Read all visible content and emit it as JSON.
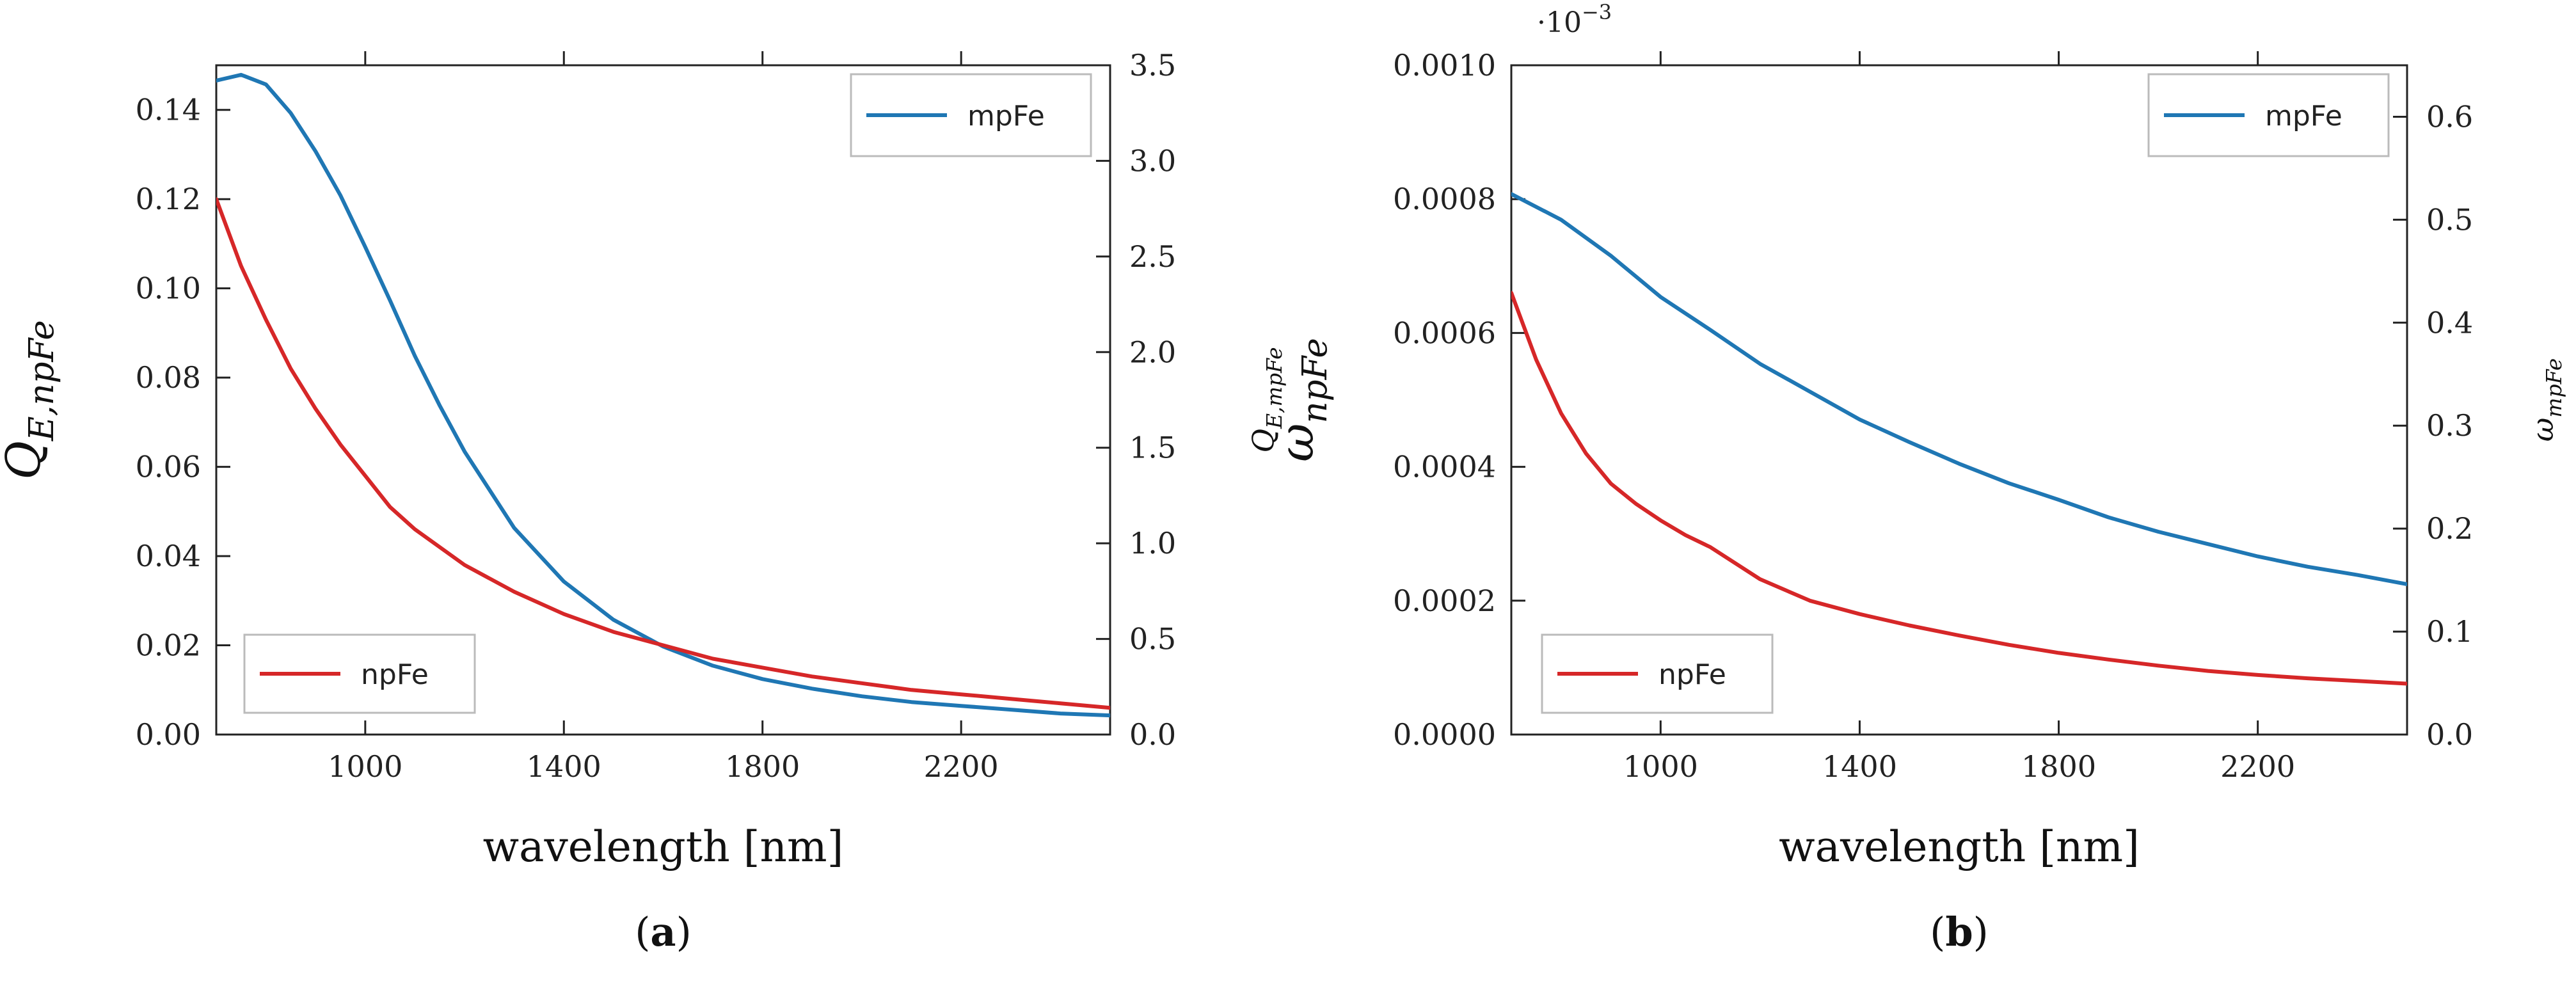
{
  "chart_data": [
    {
      "id": "a",
      "type": "line",
      "caption_letter": "a",
      "caption_open": "(",
      "caption_close": ")",
      "xlabel": "wavelength [nm]",
      "xlim": [
        700,
        2500
      ],
      "xticks": [
        1000,
        1400,
        1800,
        2200
      ],
      "left_axis": {
        "label": "Q",
        "label_sub": "E,npFe",
        "ylim": [
          0,
          0.15
        ],
        "ticks": [
          0.0,
          0.02,
          0.04,
          0.06,
          0.08,
          0.1,
          0.12,
          0.14
        ],
        "tick_labels": [
          "0.00",
          "0.02",
          "0.04",
          "0.06",
          "0.08",
          "0.10",
          "0.12",
          "0.14"
        ]
      },
      "right_axis": {
        "label": "Q",
        "label_sub": "E,mpFe",
        "ylim": [
          0,
          3.5
        ],
        "ticks": [
          0,
          0.5,
          1,
          1.5,
          2,
          2.5,
          3,
          3.5
        ],
        "tick_labels": [
          "0.0",
          "0.5",
          "1.0",
          "1.5",
          "2.0",
          "2.5",
          "3.0",
          "3.5"
        ]
      },
      "series": [
        {
          "name": "mpFe",
          "axis": "right",
          "color": "#1f77b4",
          "legend_position": "top-right",
          "x": [
            700,
            750,
            800,
            850,
            900,
            950,
            1000,
            1050,
            1100,
            1150,
            1200,
            1300,
            1400,
            1500,
            1600,
            1700,
            1800,
            1900,
            2000,
            2100,
            2200,
            2300,
            2400,
            2500
          ],
          "y": [
            3.42,
            3.45,
            3.4,
            3.25,
            3.05,
            2.82,
            2.55,
            2.27,
            1.98,
            1.72,
            1.48,
            1.08,
            0.8,
            0.6,
            0.46,
            0.36,
            0.29,
            0.24,
            0.2,
            0.17,
            0.15,
            0.13,
            0.11,
            0.1
          ]
        },
        {
          "name": "npFe",
          "axis": "left",
          "color": "#d62728",
          "legend_position": "bottom-left",
          "x": [
            700,
            750,
            800,
            850,
            900,
            950,
            1000,
            1050,
            1100,
            1200,
            1300,
            1400,
            1500,
            1600,
            1700,
            1800,
            1900,
            2000,
            2100,
            2200,
            2300,
            2400,
            2500
          ],
          "y": [
            0.12,
            0.105,
            0.093,
            0.082,
            0.073,
            0.065,
            0.058,
            0.051,
            0.046,
            0.038,
            0.032,
            0.027,
            0.023,
            0.02,
            0.017,
            0.015,
            0.013,
            0.0115,
            0.01,
            0.009,
            0.008,
            0.007,
            0.006
          ]
        }
      ]
    },
    {
      "id": "b",
      "type": "line",
      "caption_letter": "b",
      "caption_open": "(",
      "caption_close": ")",
      "xlabel": "wavelength [nm]",
      "xlim": [
        700,
        2500
      ],
      "xticks": [
        1000,
        1400,
        1800,
        2200
      ],
      "left_axis": {
        "label": "ω",
        "label_sub": "npFe",
        "ylim": [
          0,
          0.001
        ],
        "ticks": [
          0,
          0.0002,
          0.0004,
          0.0006,
          0.0008,
          0.001
        ],
        "tick_labels": [
          "0.0000",
          "0.0002",
          "0.0004",
          "0.0006",
          "0.0008",
          "0.0010"
        ]
      },
      "right_axis": {
        "label": "ω",
        "label_sub": "mpFe",
        "ylim": [
          0,
          0.65
        ],
        "ticks": [
          0,
          0.1,
          0.2,
          0.3,
          0.4,
          0.5,
          0.6
        ],
        "tick_labels": [
          "0.0",
          "0.1",
          "0.2",
          "0.3",
          "0.4",
          "0.5",
          "0.6"
        ]
      },
      "multiplier_base": "·10",
      "multiplier_exp": "−3",
      "series": [
        {
          "name": "mpFe",
          "axis": "right",
          "color": "#1f77b4",
          "legend_position": "top-right",
          "x": [
            700,
            800,
            900,
            1000,
            1100,
            1200,
            1300,
            1400,
            1500,
            1600,
            1700,
            1800,
            1900,
            2000,
            2100,
            2200,
            2300,
            2400,
            2500
          ],
          "y": [
            0.525,
            0.5,
            0.465,
            0.425,
            0.393,
            0.36,
            0.333,
            0.306,
            0.284,
            0.263,
            0.244,
            0.228,
            0.211,
            0.197,
            0.185,
            0.173,
            0.163,
            0.155,
            0.146
          ]
        },
        {
          "name": "npFe",
          "axis": "left",
          "color": "#d62728",
          "legend_position": "bottom-left",
          "x": [
            700,
            750,
            800,
            850,
            900,
            950,
            1000,
            1050,
            1100,
            1200,
            1300,
            1400,
            1500,
            1600,
            1700,
            1800,
            1900,
            2000,
            2100,
            2200,
            2300,
            2400,
            2500
          ],
          "y": [
            0.00066,
            0.00056,
            0.00048,
            0.00042,
            0.000375,
            0.000345,
            0.00032,
            0.000298,
            0.00028,
            0.000232,
            0.0002,
            0.00018,
            0.000163,
            0.000148,
            0.000134,
            0.000122,
            0.000112,
            0.000103,
            9.5e-05,
            8.9e-05,
            8.4e-05,
            8e-05,
            7.6e-05
          ]
        }
      ]
    }
  ]
}
